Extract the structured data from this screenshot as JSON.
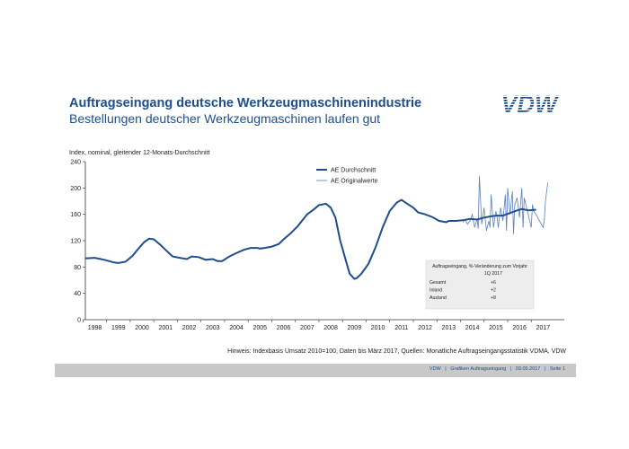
{
  "header": {
    "title": "Auftragseingang deutsche Werkzeugmaschinenindustrie",
    "subtitle": "Bestellungen deutscher Werkzeugmaschinen laufen gut",
    "logo_text": "VDW"
  },
  "chart_data": {
    "type": "line",
    "ylabel": "Index, nominal, gleitender 12-Monats-Durchschnitt",
    "ylim": [
      0,
      240
    ],
    "yticks": [
      0,
      40,
      80,
      120,
      160,
      200,
      240
    ],
    "xlim": [
      1997.6,
      2017.9
    ],
    "xticks": [
      "1998",
      "1999",
      "2000",
      "2001",
      "2002",
      "2003",
      "2004",
      "2005",
      "2006",
      "2007",
      "2008",
      "2009",
      "2010",
      "2011",
      "2012",
      "2013",
      "2014",
      "2015",
      "2016",
      "2017"
    ],
    "legend": {
      "placement": "top-center"
    },
    "series": [
      {
        "name": "AE Durchschnitt",
        "color": "#1f4e8c",
        "x": [
          1997.6,
          1998.0,
          1998.4,
          1998.8,
          1999.0,
          1999.3,
          1999.6,
          1999.9,
          2000.1,
          2000.3,
          2000.5,
          2000.8,
          2001.0,
          2001.3,
          2001.6,
          2001.9,
          2002.1,
          2002.4,
          2002.7,
          2003.0,
          2003.2,
          2003.4,
          2003.7,
          2004.0,
          2004.3,
          2004.6,
          2004.9,
          2005.0,
          2005.2,
          2005.5,
          2005.8,
          2006.0,
          2006.3,
          2006.6,
          2006.8,
          2007.0,
          2007.3,
          2007.5,
          2007.8,
          2008.0,
          2008.2,
          2008.4,
          2008.6,
          2008.8,
          2009.0,
          2009.1,
          2009.3,
          2009.6,
          2009.9,
          2010.2,
          2010.5,
          2010.8,
          2011.0,
          2011.2,
          2011.5,
          2011.7,
          2012.0,
          2012.3,
          2012.6,
          2012.9,
          2013.0,
          2013.3,
          2013.6,
          2013.9,
          2014.2,
          2014.5,
          2014.8,
          2015.0,
          2015.3,
          2015.6,
          2015.9,
          2016.1,
          2016.4,
          2016.7
        ],
        "values": [
          93,
          94,
          91,
          87,
          86,
          88,
          97,
          110,
          118,
          123,
          122,
          113,
          106,
          96,
          94,
          92,
          96,
          95,
          91,
          92,
          89,
          89,
          96,
          101,
          106,
          109,
          109,
          108,
          109,
          111,
          115,
          122,
          131,
          142,
          151,
          160,
          168,
          174,
          176,
          170,
          155,
          120,
          95,
          70,
          62,
          63,
          70,
          85,
          110,
          140,
          165,
          178,
          182,
          177,
          170,
          163,
          160,
          156,
          150,
          148,
          150,
          150,
          151,
          153,
          152,
          155,
          157,
          158,
          158,
          162,
          166,
          168,
          166,
          167
        ]
      },
      {
        "name": "AE Originalwerte",
        "color": "#5a7fbf",
        "x": [
          2013.6,
          2013.7,
          2013.8,
          2013.9,
          2014.0,
          2014.1,
          2014.2,
          2014.25,
          2014.3,
          2014.4,
          2014.5,
          2014.6,
          2014.7,
          2014.75,
          2014.8,
          2014.9,
          2015.0,
          2015.05,
          2015.1,
          2015.2,
          2015.3,
          2015.4,
          2015.45,
          2015.5,
          2015.6,
          2015.7,
          2015.75,
          2015.8,
          2015.9,
          2016.0,
          2016.1,
          2016.15,
          2016.2,
          2016.3,
          2016.4,
          2016.5,
          2016.55,
          2016.6,
          2016.7,
          2017.0,
          2017.05,
          2017.1,
          2017.2
        ],
        "values": [
          148,
          152,
          145,
          150,
          160,
          140,
          153,
          138,
          218,
          145,
          170,
          135,
          150,
          140,
          190,
          140,
          165,
          155,
          140,
          170,
          150,
          190,
          135,
          200,
          160,
          195,
          130,
          175,
          185,
          155,
          200,
          140,
          185,
          170,
          155,
          140,
          175,
          165,
          160,
          140,
          150,
          180,
          208
        ]
      }
    ],
    "inset": {
      "title": "Auftragseingang, %-Veränderung zum Vorjahr",
      "period": "1Q 2017",
      "rows": [
        {
          "label": "Gesamt",
          "value": "+6"
        },
        {
          "label": "Inland",
          "value": "+2"
        },
        {
          "label": "Ausland",
          "value": "+8"
        }
      ]
    }
  },
  "note": "Hinweis: Indexbasis Umsatz 2010=100, Daten bis März 2017, Quellen: Monatliche Auftragseingangsstatistik VDMA, VDW",
  "footer": {
    "org": "VDW",
    "doc": "Grafiken Auftragseingang",
    "date": "03.05.2017",
    "page": "Seite 1"
  }
}
